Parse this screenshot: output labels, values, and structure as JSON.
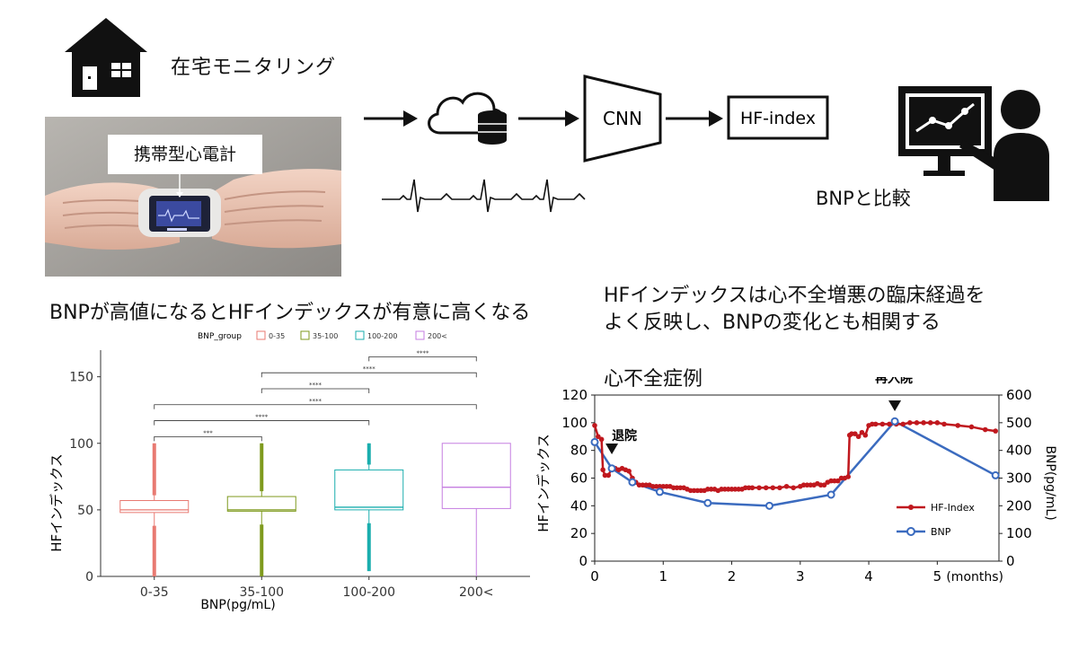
{
  "header": {
    "home_label": "在宅モニタリング",
    "device_callout": "携帯型心電計",
    "cnn_label": "CNN",
    "hf_label": "HF-index",
    "compare_label": "BNPと比較"
  },
  "left_panel": {
    "title": "BNPが高値になるとHFインデックスが有意に高くなる"
  },
  "right_panel": {
    "title_line1": "HFインデックスは心不全増悪の臨床経過を",
    "title_line2": "よく反映し、BNPの変化とも相関する",
    "case_label": "心不全症例"
  },
  "colors": {
    "group_0_35": "#e87a72",
    "group_35_100": "#7f9a1e",
    "group_100_200": "#1aaeae",
    "group_200": "#c57ee0",
    "hf_index": "#c0181e",
    "bnp": "#3b6bbf"
  },
  "chart_data": [
    {
      "type": "box",
      "legend_title": "BNP_group",
      "legend_position": "top",
      "categories": [
        "0-35",
        "35-100",
        "100-200",
        "200<"
      ],
      "xlabel": "BNP(pg/mL)",
      "ylabel": "HFインデックス",
      "ylim": [
        0,
        170
      ],
      "yticks": [
        0,
        50,
        100,
        150
      ],
      "boxes": [
        {
          "group": "0-35",
          "min": 0,
          "q1": 48,
          "median": 50,
          "q3": 57,
          "max": 100
        },
        {
          "group": "35-100",
          "min": 0,
          "q1": 49,
          "median": 50,
          "q3": 60,
          "max": 100
        },
        {
          "group": "100-200",
          "min": 4,
          "q1": 50,
          "median": 52,
          "q3": 80,
          "max": 100
        },
        {
          "group": "200<",
          "min": 0,
          "q1": 51,
          "median": 67,
          "q3": 100,
          "max": 100
        }
      ],
      "significance": [
        {
          "pair": [
            "0-35",
            "35-100"
          ],
          "level": 105,
          "label": "***"
        },
        {
          "pair": [
            "0-35",
            "100-200"
          ],
          "level": 117,
          "label": "****"
        },
        {
          "pair": [
            "0-35",
            "200<"
          ],
          "level": 129,
          "label": "****"
        },
        {
          "pair": [
            "35-100",
            "100-200"
          ],
          "level": 141,
          "label": "****"
        },
        {
          "pair": [
            "35-100",
            "200<"
          ],
          "level": 153,
          "label": "****"
        },
        {
          "pair": [
            "100-200",
            "200<"
          ],
          "level": 165,
          "label": "****"
        }
      ]
    },
    {
      "type": "line",
      "xlabel": "(months)",
      "ylabel_left": "HFインデックス",
      "ylabel_right": "BNP(pg/mL)",
      "xlim": [
        0,
        5.9
      ],
      "xticks": [
        0,
        1,
        2,
        3,
        4,
        5
      ],
      "ylim_left": [
        0,
        120
      ],
      "yticks_left": [
        0,
        20,
        40,
        60,
        80,
        100,
        120
      ],
      "ylim_right": [
        0,
        600
      ],
      "yticks_right": [
        0,
        100,
        200,
        300,
        400,
        500,
        600
      ],
      "annotations": [
        {
          "text": "退院",
          "x": 0.25
        },
        {
          "text": "再入院",
          "x": 4.38
        }
      ],
      "series": [
        {
          "name": "HF-Index",
          "axis": "left",
          "x": [
            0.0,
            0.05,
            0.1,
            0.12,
            0.15,
            0.2,
            0.25,
            0.3,
            0.35,
            0.4,
            0.45,
            0.5,
            0.55,
            0.6,
            0.65,
            0.7,
            0.75,
            0.8,
            0.85,
            0.9,
            0.95,
            1.0,
            1.05,
            1.1,
            1.15,
            1.2,
            1.25,
            1.3,
            1.35,
            1.4,
            1.45,
            1.5,
            1.55,
            1.6,
            1.65,
            1.7,
            1.75,
            1.8,
            1.85,
            1.9,
            1.95,
            2.0,
            2.05,
            2.1,
            2.15,
            2.2,
            2.25,
            2.3,
            2.4,
            2.5,
            2.6,
            2.7,
            2.8,
            2.9,
            3.0,
            3.05,
            3.1,
            3.15,
            3.2,
            3.25,
            3.3,
            3.35,
            3.4,
            3.45,
            3.5,
            3.55,
            3.6,
            3.65,
            3.7,
            3.72,
            3.75,
            3.8,
            3.85,
            3.9,
            3.95,
            4.0,
            4.05,
            4.1,
            4.2,
            4.3,
            4.4,
            4.5,
            4.6,
            4.7,
            4.8,
            4.9,
            5.0,
            5.1,
            5.3,
            5.5,
            5.7,
            5.85
          ],
          "values": [
            98,
            90,
            88,
            66,
            62,
            62,
            67,
            67,
            66,
            67,
            66,
            65,
            60,
            57,
            55,
            55,
            55,
            55,
            54,
            54,
            54,
            54,
            54,
            54,
            53,
            53,
            53,
            53,
            52,
            51,
            51,
            51,
            51,
            51,
            52,
            52,
            52,
            51,
            52,
            52,
            52,
            52,
            52,
            52,
            52,
            53,
            53,
            53,
            53,
            53,
            53,
            53,
            54,
            53,
            54,
            55,
            55,
            55,
            55,
            56,
            55,
            55,
            57,
            58,
            58,
            58,
            60,
            60,
            61,
            91,
            92,
            92,
            90,
            93,
            91,
            98,
            99,
            99,
            99,
            99,
            99,
            99,
            100,
            100,
            100,
            100,
            100,
            99,
            98,
            97,
            95,
            94
          ]
        },
        {
          "name": "BNP",
          "axis": "right",
          "x": [
            0.0,
            0.25,
            0.55,
            0.95,
            1.65,
            2.55,
            3.45,
            4.38,
            5.85
          ],
          "values": [
            430,
            335,
            285,
            250,
            210,
            200,
            240,
            505,
            310
          ]
        }
      ]
    }
  ]
}
